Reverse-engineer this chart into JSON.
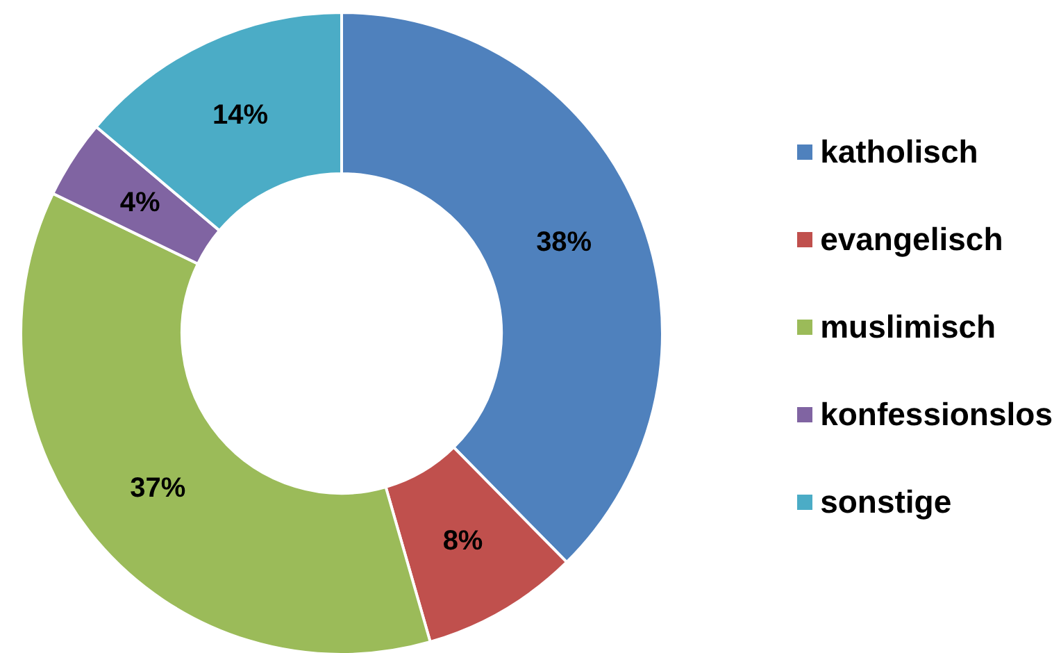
{
  "chart_data": {
    "type": "donut",
    "categories": [
      "katholisch",
      "evangelisch",
      "muslimisch",
      "konfessionslos",
      "sonstige"
    ],
    "values": [
      38,
      8,
      37,
      4,
      14
    ],
    "colors": [
      "#4f81bd",
      "#c0504d",
      "#9bbb59",
      "#8064a2",
      "#4bacc6"
    ],
    "value_labels": [
      "38%",
      "8%",
      "37%",
      "4%",
      "14%"
    ],
    "legend": "right"
  }
}
